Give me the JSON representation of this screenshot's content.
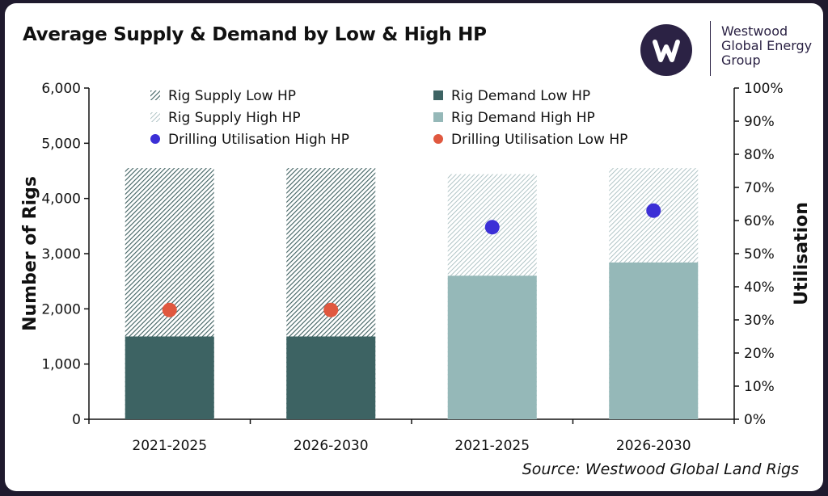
{
  "title": "Average Supply & Demand by Low & High HP",
  "brand": {
    "line1": "Westwood",
    "line2": "Global Energy",
    "line3": "Group",
    "logo_icon": "westwood-w-logo-icon"
  },
  "source": "Source: Westwood Global Land Rigs",
  "colors": {
    "supply_low": "#3d5f5f",
    "demand_low": "#3d6363",
    "supply_high": "#9db6b8",
    "demand_high": "#95b8b8",
    "util_high": "#3b2fd6",
    "util_low": "#e0583f"
  },
  "chart_data": {
    "type": "bar",
    "categories": [
      "2021-2025",
      "2026-2030",
      "2021-2025",
      "2026-2030"
    ],
    "ylabel": "Number of Rigs",
    "y2label": "Utilisation",
    "ylim": [
      0,
      6000
    ],
    "y2lim": [
      0,
      100
    ],
    "yticks": [
      "0",
      "1,000",
      "2,000",
      "3,000",
      "4,000",
      "5,000",
      "6,000"
    ],
    "y2ticks": [
      "0%",
      "10%",
      "20%",
      "30%",
      "40%",
      "50%",
      "60%",
      "70%",
      "80%",
      "90%",
      "100%"
    ],
    "legend": [
      {
        "name": "Rig Supply Low HP",
        "marker": "hatch-dense"
      },
      {
        "name": "Rig Demand Low HP",
        "marker": "square-dark"
      },
      {
        "name": "Rig Supply High HP",
        "marker": "hatch-light"
      },
      {
        "name": "Rig Demand High HP",
        "marker": "square-light"
      },
      {
        "name": "Drilling Utilisation High HP",
        "marker": "dot-blue"
      },
      {
        "name": "Drilling Utilisation Low HP",
        "marker": "dot-red"
      }
    ],
    "series": [
      {
        "name": "Rig Supply Low HP",
        "values": [
          4550,
          4550,
          null,
          null
        ]
      },
      {
        "name": "Rig Demand Low HP",
        "values": [
          1500,
          1500,
          null,
          null
        ]
      },
      {
        "name": "Rig Supply High HP",
        "values": [
          null,
          null,
          4440,
          4550
        ]
      },
      {
        "name": "Rig Demand High HP",
        "values": [
          null,
          null,
          2600,
          2840
        ]
      },
      {
        "name": "Drilling Utilisation High HP",
        "axis": "right",
        "values": [
          null,
          null,
          58,
          63
        ]
      },
      {
        "name": "Drilling Utilisation Low HP",
        "axis": "right",
        "values": [
          33,
          33,
          null,
          null
        ]
      }
    ],
    "grid": false,
    "legend_position": "top-inside"
  }
}
